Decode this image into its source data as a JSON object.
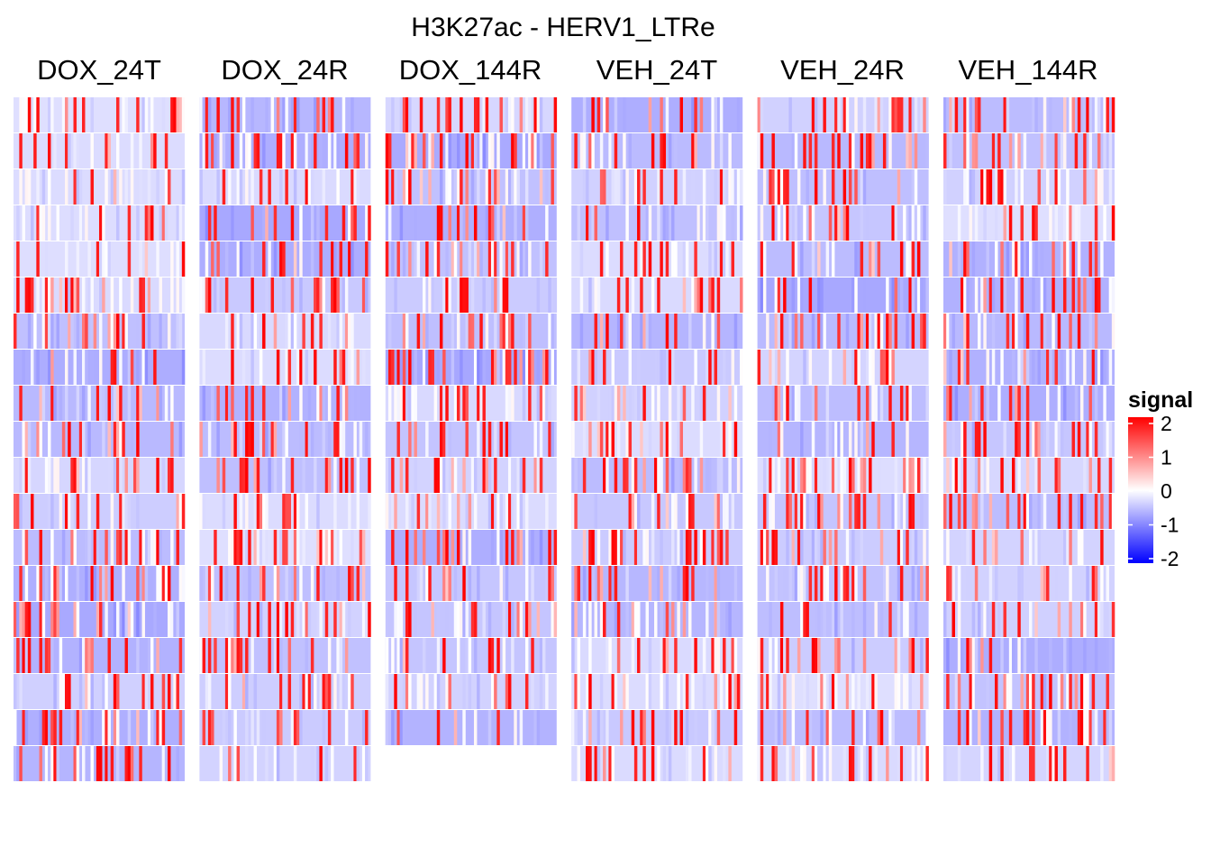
{
  "chart_data": {
    "type": "heatmap",
    "title": "H3K27ac - HERV1_LTRe",
    "xlabel": "",
    "ylabel": "",
    "panels": [
      {
        "name": "DOX_24T",
        "rows": 19
      },
      {
        "name": "DOX_24R",
        "rows": 19
      },
      {
        "name": "DOX_144R",
        "rows": 18
      },
      {
        "name": "VEH_24T",
        "rows": 19
      },
      {
        "name": "VEH_24R",
        "rows": 19
      },
      {
        "name": "VEH_144R",
        "rows": 19
      }
    ],
    "columns_per_panel": 60,
    "value_range": [
      -2,
      2
    ],
    "legend": {
      "title": "signal",
      "ticks": [
        2,
        1,
        0,
        -1,
        -2
      ],
      "colors": {
        "low": "#0000ff",
        "mid": "#ffffff",
        "high": "#ff0000"
      },
      "position": "right"
    }
  }
}
